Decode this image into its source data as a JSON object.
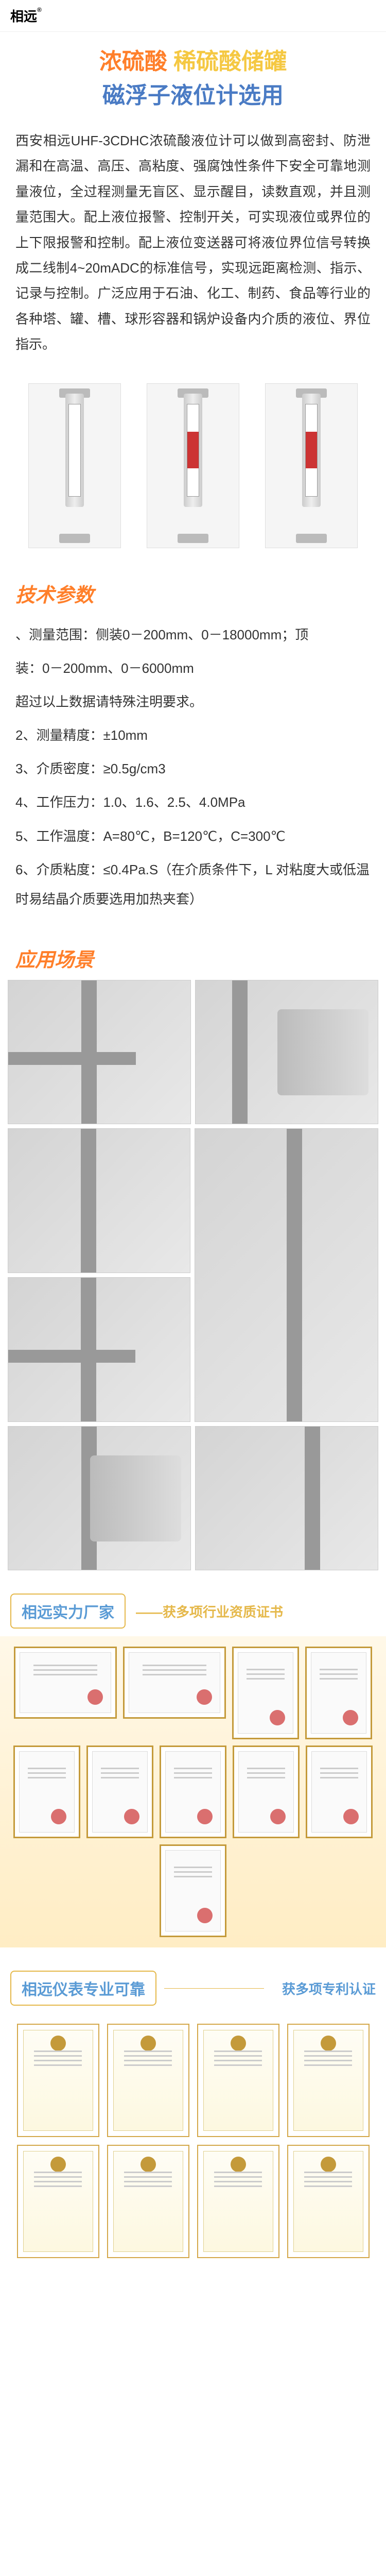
{
  "logo": {
    "text": "相远",
    "mark": "®"
  },
  "title": {
    "line1a": "浓硫酸",
    "line1b": "稀硫酸储罐",
    "line2": "磁浮子液位计选用"
  },
  "intro": "西安相远UHF-3CDHC浓硫酸液位计可以做到高密封、防泄漏和在高温、高压、高粘度、强腐蚀性条件下安全可靠地测量液位，全过程测量无盲区、显示醒目，读数直观，并且测量范围大。配上液位报警、控制开关，可实现液位或界位的上下限报警和控制。配上液位变送器可将液位界位信号转换成二线制4~20mADC的标准信号，实现远距离检测、指示、记录与控制。广泛应用于石油、化工、制药、食品等行业的各种塔、罐、槽、球形容器和锅炉设备内介质的液位、界位指示。",
  "sections": {
    "specs_title": "技术参数",
    "app_title": "应用场景"
  },
  "specs": [
    "、测量范围：侧装0－200mm、0－18000mm；顶",
    "装：0－200mm、0－6000mm",
    "超过以上数据请特殊注明要求。",
    "2、测量精度：±10mm",
    "3、介质密度：≥0.5g/cm3",
    "4、工作压力：1.0、1.6、2.5、4.0MPa",
    "5、工作温度：A=80℃，B=120℃，C=300℃",
    "6、介质粘度：≤0.4Pa.S（在介质条件下，L 对粘度大或低温时易结晶介质要选用加热夹套）"
  ],
  "cert1": {
    "badge": "相远实力厂家",
    "subtitle": "——获多项行业资质证书",
    "count": 10
  },
  "cert2": {
    "badge": "相远仪表专业可靠",
    "subtitle": "获多项专利认证",
    "count": 8
  },
  "colors": {
    "orange": "#ff7f2a",
    "yellow": "#f5c842",
    "blue": "#4a7bc4",
    "gold": "#e5b84a",
    "lightblue": "#5a9bd5"
  }
}
